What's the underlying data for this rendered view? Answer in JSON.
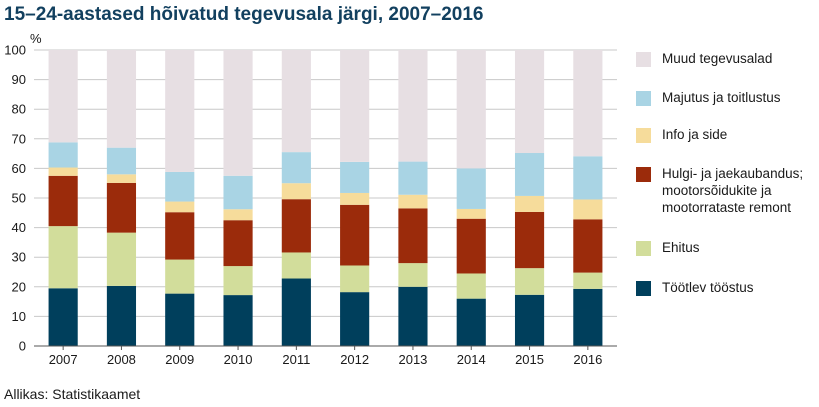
{
  "chart_data": {
    "type": "bar",
    "stacked": true,
    "title": "15–24-aastased hõivatud tegevusala järgi, 2007–2016",
    "ylabel": "%",
    "ylim": [
      0,
      100
    ],
    "yticks": [
      0,
      10,
      20,
      30,
      40,
      50,
      60,
      70,
      80,
      90,
      100
    ],
    "grid": true,
    "legend_position": "right",
    "categories": [
      "2007",
      "2008",
      "2009",
      "2010",
      "2011",
      "2012",
      "2013",
      "2014",
      "2015",
      "2016"
    ],
    "series": [
      {
        "name": "Töötlev tööstus",
        "color": "#003f5c",
        "values": [
          19.5,
          20.3,
          17.7,
          17.2,
          22.8,
          18.2,
          20.0,
          16.0,
          17.3,
          19.3
        ]
      },
      {
        "name": "Ehitus",
        "color": "#d2dd9b",
        "values": [
          21.0,
          18.0,
          11.5,
          9.8,
          8.8,
          9.0,
          8.0,
          8.5,
          9.0,
          5.5
        ]
      },
      {
        "name": "Hulgi- ja jaekaubandus; mootorsõidukite ja mootorrataste remont",
        "color": "#9b2b0b",
        "values": [
          17.0,
          16.8,
          16.0,
          15.5,
          18.0,
          20.5,
          18.5,
          18.5,
          19.0,
          18.0
        ]
      },
      {
        "name": "Info ja side",
        "color": "#f6dc9b",
        "values": [
          2.8,
          2.9,
          3.6,
          3.7,
          5.4,
          4.0,
          4.6,
          3.3,
          5.4,
          6.7
        ]
      },
      {
        "name": "Majutus ja toitlustus",
        "color": "#a9d4e4",
        "values": [
          8.5,
          9.0,
          10.0,
          11.3,
          10.5,
          10.5,
          11.2,
          13.7,
          14.5,
          14.6
        ]
      },
      {
        "name": "Muud tegevusalad",
        "color": "#e7dfe3",
        "values": [
          31.2,
          33.0,
          41.2,
          42.5,
          34.5,
          37.8,
          37.7,
          40.0,
          34.8,
          35.9
        ]
      }
    ],
    "legend_order": [
      5,
      4,
      3,
      2,
      1,
      0
    ],
    "source": "Allikas: Statistikaamet"
  }
}
